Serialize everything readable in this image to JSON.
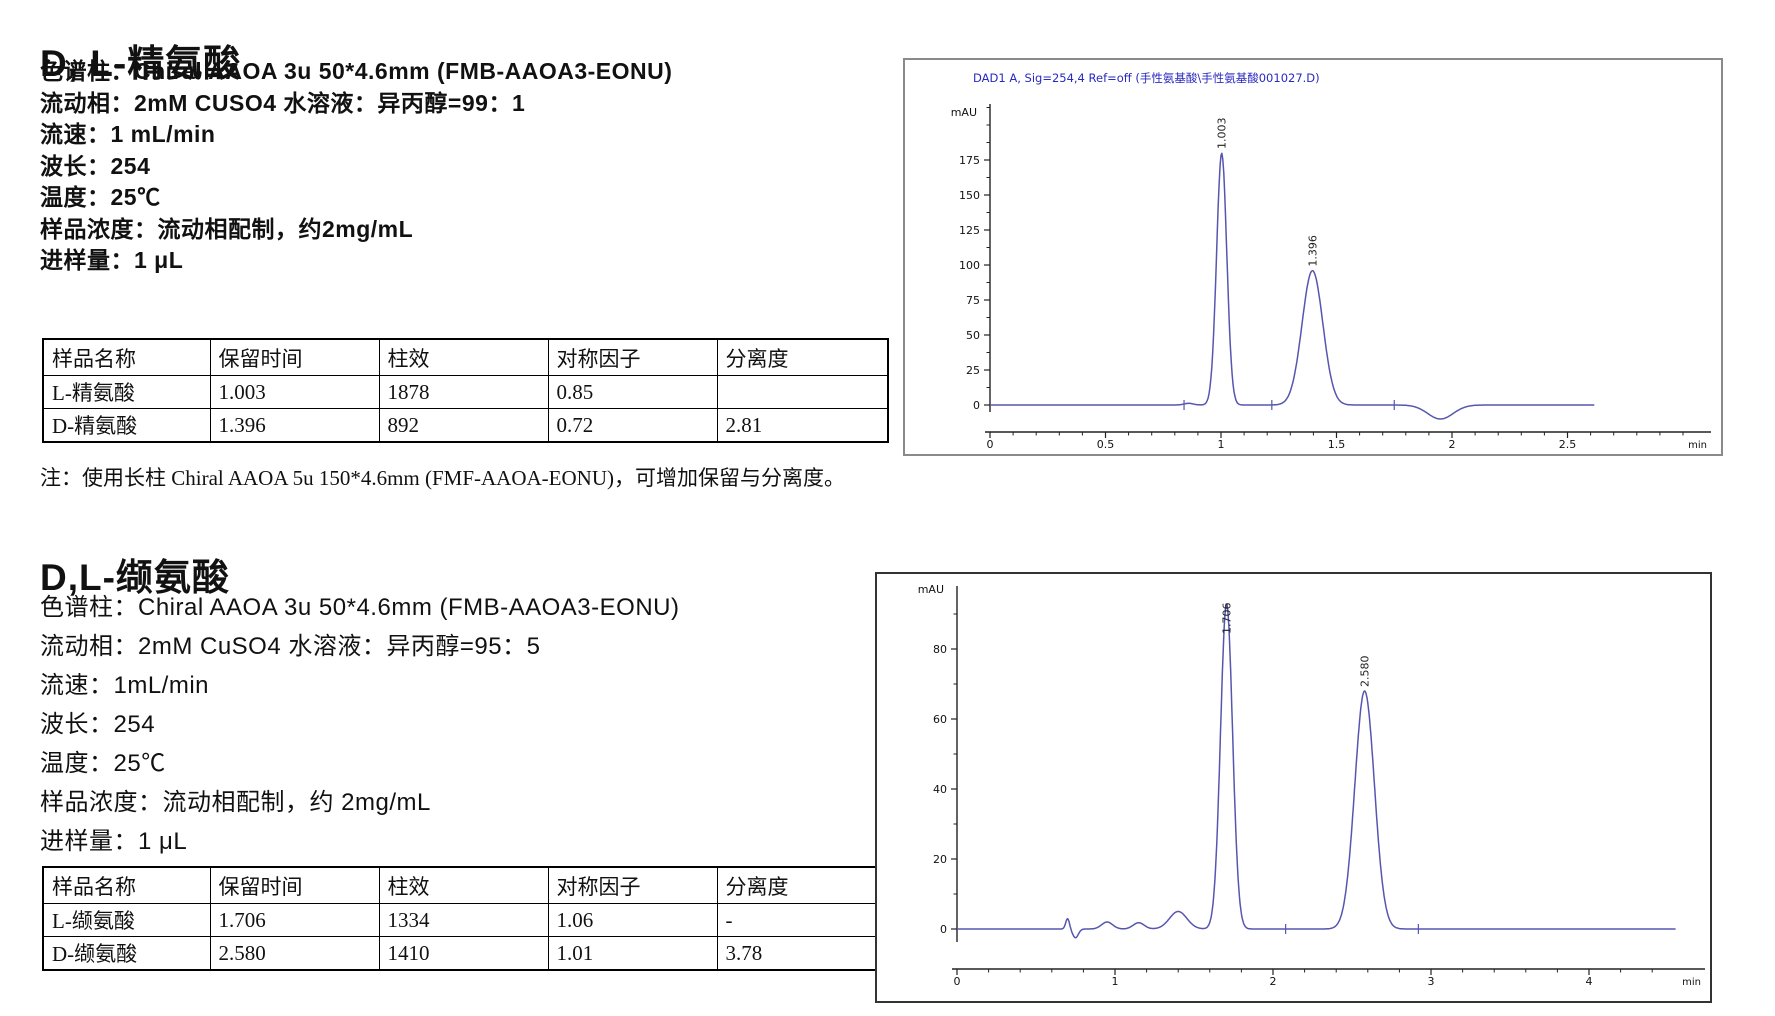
{
  "page": {
    "background": "#ffffff"
  },
  "sections": [
    {
      "title": "D, L-精氨酸",
      "spec_lines": [
        "色谱柱：Chiral AAOA 3u 50*4.6mm (FMB-AAOA3-EONU)",
        "流动相：2mM CUSO4 水溶液：异丙醇=99：1",
        "流速：1 mL/min",
        "波长：254",
        "温度：25℃",
        "样品浓度：流动相配制，约2mg/mL",
        "进样量：1 μL"
      ],
      "table": {
        "headers": [
          "样品名称",
          "保留时间",
          "柱效",
          "对称因子",
          "分离度"
        ],
        "rows": [
          [
            "L-精氨酸",
            "1.003",
            "1878",
            "0.85",
            ""
          ],
          [
            "D-精氨酸",
            "1.396",
            "892",
            "0.72",
            "2.81"
          ]
        ]
      },
      "note": "注：使用长柱 Chiral AAOA 5u 150*4.6mm (FMF-AAOA-EONU)，可增加保留与分离度。"
    },
    {
      "title": "D,L-缬氨酸",
      "spec_lines": [
        "色谱柱：Chiral AAOA 3u 50*4.6mm (FMB-AAOA3-EONU)",
        "流动相：2mM CuSO4 水溶液：异丙醇=95：5",
        "流速：1mL/min",
        "波长：254",
        "温度：25℃",
        "样品浓度：流动相配制，约 2mg/mL",
        "进样量：1 μL"
      ],
      "table": {
        "headers": [
          "样品名称",
          "保留时间",
          "柱效",
          "对称因子",
          "分离度"
        ],
        "rows": [
          [
            "L-缬氨酸",
            "1.706",
            "1334",
            "1.06",
            "-"
          ],
          [
            "D-缬氨酸",
            "2.580",
            "1410",
            "1.01",
            "3.78"
          ]
        ]
      },
      "note": ""
    }
  ],
  "chart_data": [
    {
      "type": "line",
      "title": "DAD1 A, Sig=254,4 Ref=off (手性氨基酸\\手性氨基酸001027.D)",
      "title_color": "#2929c0",
      "ylabel": "mAU",
      "xlabel": "min",
      "x_ticks": [
        0,
        0.5,
        1,
        1.5,
        2,
        2.5
      ],
      "y_ticks": [
        0,
        25,
        50,
        75,
        100,
        125,
        150,
        175
      ],
      "xlim": [
        0,
        2.75
      ],
      "ylim": [
        -15,
        215
      ],
      "grid": false,
      "legend": "none",
      "trace_color": "#5656b0",
      "peaks": [
        {
          "rt": 1.003,
          "mau": 180,
          "sigma": 0.022,
          "label": "1.003"
        },
        {
          "rt": 1.396,
          "mau": 96,
          "sigma": 0.045,
          "label": "1.396"
        }
      ],
      "minor_features": [
        {
          "rt": 0.86,
          "mau": 1.2,
          "sigma": 0.02
        },
        {
          "rt": 1.95,
          "mau": -10,
          "sigma": 0.055
        }
      ],
      "markers": [
        0.84,
        1.22,
        1.75
      ],
      "trace_end": 2.62
    },
    {
      "type": "line",
      "title": "",
      "title_color": "#2929c0",
      "ylabel": "mAU",
      "xlabel": "min",
      "x_ticks": [
        0,
        1,
        2,
        3,
        4
      ],
      "y_ticks": [
        0,
        20,
        40,
        60,
        80
      ],
      "xlim": [
        0,
        4.85
      ],
      "ylim": [
        -10,
        98
      ],
      "grid": false,
      "legend": "none",
      "trace_color": "#5656b0",
      "peaks": [
        {
          "rt": 1.706,
          "mau": 93,
          "sigma": 0.038,
          "label": "1.706"
        },
        {
          "rt": 2.58,
          "mau": 68,
          "sigma": 0.062,
          "label": "2.580"
        }
      ],
      "minor_features": [
        {
          "rt": 0.7,
          "mau": 3,
          "sigma": 0.012
        },
        {
          "rt": 0.75,
          "mau": -2.5,
          "sigma": 0.018
        },
        {
          "rt": 0.95,
          "mau": 2,
          "sigma": 0.035
        },
        {
          "rt": 1.15,
          "mau": 1.8,
          "sigma": 0.035
        },
        {
          "rt": 1.4,
          "mau": 5,
          "sigma": 0.055
        }
      ],
      "markers": [
        2.08,
        2.92
      ],
      "trace_end": 4.55
    }
  ]
}
